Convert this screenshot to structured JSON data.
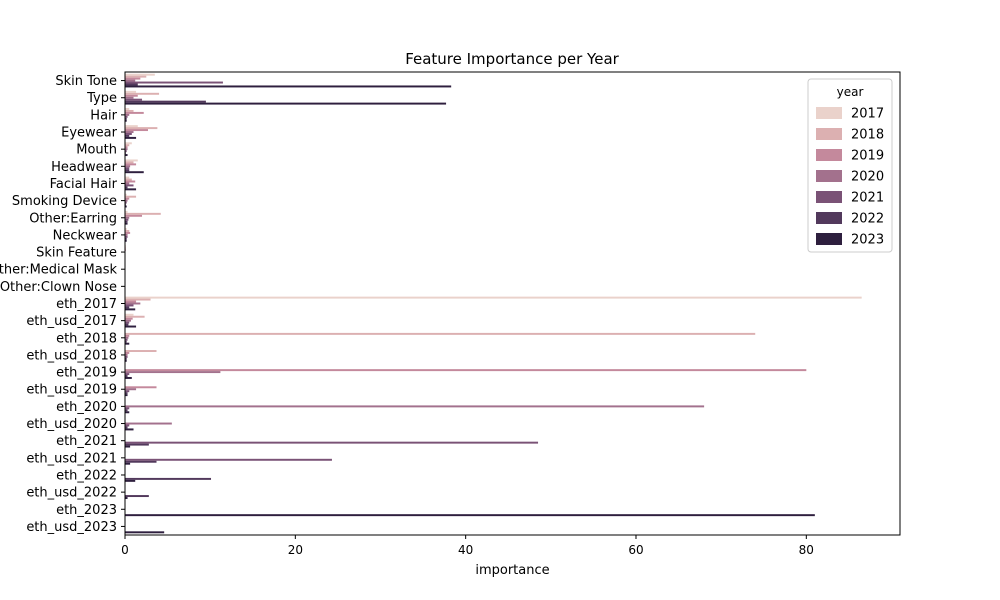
{
  "chart_data": {
    "type": "bar",
    "orientation": "horizontal",
    "title": "Feature Importance per Year",
    "xlabel": "importance",
    "ylabel": "",
    "xlim": [
      0,
      91
    ],
    "x_ticks": [
      0,
      20,
      40,
      60,
      80
    ],
    "grid": false,
    "legend": {
      "title": "year",
      "placement": "top-right"
    },
    "categories": [
      "Skin Tone",
      "Type",
      "Hair",
      "Eyewear",
      "Mouth",
      "Headwear",
      "Facial Hair",
      "Smoking Device",
      "Other:Earring",
      "Neckwear",
      "Skin Feature",
      "Other:Medical Mask",
      "Other:Clown Nose",
      "eth_2017",
      "eth_usd_2017",
      "eth_2018",
      "eth_usd_2018",
      "eth_2019",
      "eth_usd_2019",
      "eth_2020",
      "eth_usd_2020",
      "eth_2021",
      "eth_usd_2021",
      "eth_2022",
      "eth_usd_2022",
      "eth_2023",
      "eth_usd_2023"
    ],
    "series": [
      {
        "name": "2017",
        "color": "#ead2cb",
        "values": [
          3.5,
          1.3,
          0.5,
          1.5,
          0.8,
          1.5,
          0.5,
          0.2,
          0.3,
          0.2,
          0.1,
          0.05,
          0.05,
          86.5,
          1.0,
          0,
          0,
          0,
          0,
          0,
          0,
          0,
          0,
          0,
          0,
          0,
          0
        ]
      },
      {
        "name": "2018",
        "color": "#dcb0b1",
        "values": [
          2.5,
          4.0,
          1.0,
          3.8,
          0.5,
          1.0,
          0.8,
          1.3,
          4.2,
          0.5,
          0.1,
          0.05,
          0.05,
          3.0,
          2.3,
          74.0,
          3.7,
          0,
          0,
          0,
          0,
          0,
          0,
          0,
          0,
          0,
          0
        ]
      },
      {
        "name": "2019",
        "color": "#c4899c",
        "values": [
          1.8,
          1.5,
          2.2,
          2.7,
          0.3,
          1.3,
          1.2,
          0.5,
          2.0,
          0.6,
          0.1,
          0.05,
          0.05,
          1.3,
          0.9,
          0.5,
          0.5,
          80.0,
          3.7,
          0,
          0,
          0,
          0,
          0,
          0,
          0,
          0
        ]
      },
      {
        "name": "2020",
        "color": "#a3718d",
        "values": [
          1.2,
          1.0,
          0.5,
          1.0,
          0.3,
          0.6,
          0.5,
          0.3,
          0.5,
          0.3,
          0.05,
          0.05,
          0.05,
          1.8,
          0.7,
          0.4,
          0.3,
          11.2,
          1.3,
          68.0,
          5.5,
          0,
          0,
          0,
          0,
          0,
          0
        ]
      },
      {
        "name": "2021",
        "color": "#7a5276",
        "values": [
          11.5,
          2.0,
          0.3,
          0.8,
          0.2,
          0.5,
          1.0,
          0.2,
          0.4,
          0.3,
          0.05,
          0.05,
          0.05,
          1.0,
          0.5,
          0.3,
          0.3,
          0.5,
          0.5,
          0.5,
          0.5,
          48.5,
          24.3,
          0,
          0,
          0,
          0
        ]
      },
      {
        "name": "2022",
        "color": "#52395c",
        "values": [
          1.5,
          9.5,
          0.2,
          0.5,
          0.1,
          0.5,
          0.3,
          0.1,
          0.3,
          0.2,
          0.05,
          0.05,
          0.05,
          0.5,
          0.4,
          0.2,
          0.2,
          0.3,
          0.3,
          0.3,
          0.3,
          2.8,
          3.7,
          10.1,
          2.8,
          0,
          0
        ]
      },
      {
        "name": "2023",
        "color": "#2e1f3e",
        "values": [
          38.3,
          37.7,
          0.2,
          1.3,
          0.3,
          2.2,
          1.3,
          0.2,
          0.3,
          0.2,
          0.05,
          0.05,
          0.05,
          1.2,
          1.3,
          0.5,
          0.2,
          0.8,
          0.3,
          0.5,
          1.0,
          0.6,
          0.6,
          1.2,
          0.3,
          81.0,
          4.6
        ]
      }
    ]
  }
}
